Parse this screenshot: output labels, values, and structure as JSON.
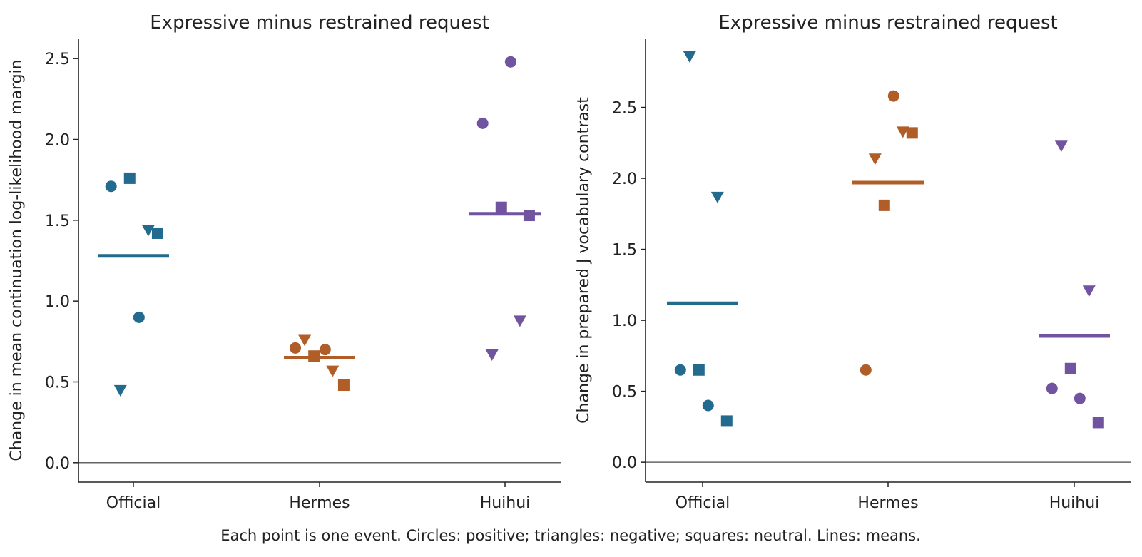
{
  "figure": {
    "caption": "Each point is one event. Circles: positive; triangles: negative; squares: neutral. Lines: means."
  },
  "colors": {
    "Official": "#236b8e",
    "Hermes": "#b05d27",
    "Huihui": "#7154a0",
    "zero_line": "#666666",
    "axis": "#222222"
  },
  "chart_data": [
    {
      "type": "scatter",
      "title": "Expressive minus restrained request",
      "xlabel": "",
      "ylabel": "Change in mean continuation log-likelihood margin",
      "categories": [
        "Official",
        "Hermes",
        "Huihui"
      ],
      "ylim": [
        -0.12,
        2.62
      ],
      "yticks": [
        "0.0",
        "0.5",
        "1.0",
        "1.5",
        "2.0",
        "2.5"
      ],
      "zero_line": true,
      "grid": false,
      "legend": "none",
      "series": [
        {
          "category": "Official",
          "mean": 1.28,
          "points": [
            {
              "jitter": -0.12,
              "y": 1.71,
              "marker": "circle"
            },
            {
              "jitter": 0.03,
              "y": 0.9,
              "marker": "circle"
            },
            {
              "jitter": -0.07,
              "y": 0.45,
              "marker": "triangle"
            },
            {
              "jitter": 0.08,
              "y": 1.44,
              "marker": "triangle"
            },
            {
              "jitter": -0.02,
              "y": 1.76,
              "marker": "square"
            },
            {
              "jitter": 0.13,
              "y": 1.42,
              "marker": "square"
            }
          ]
        },
        {
          "category": "Hermes",
          "mean": 0.65,
          "points": [
            {
              "jitter": -0.13,
              "y": 0.71,
              "marker": "circle"
            },
            {
              "jitter": 0.03,
              "y": 0.7,
              "marker": "circle"
            },
            {
              "jitter": -0.08,
              "y": 0.76,
              "marker": "triangle"
            },
            {
              "jitter": 0.07,
              "y": 0.57,
              "marker": "triangle"
            },
            {
              "jitter": -0.03,
              "y": 0.66,
              "marker": "square"
            },
            {
              "jitter": 0.13,
              "y": 0.48,
              "marker": "square"
            }
          ]
        },
        {
          "category": "Huihui",
          "mean": 1.54,
          "points": [
            {
              "jitter": -0.12,
              "y": 2.1,
              "marker": "circle"
            },
            {
              "jitter": 0.03,
              "y": 2.48,
              "marker": "circle"
            },
            {
              "jitter": -0.07,
              "y": 0.67,
              "marker": "triangle"
            },
            {
              "jitter": 0.08,
              "y": 0.88,
              "marker": "triangle"
            },
            {
              "jitter": -0.02,
              "y": 1.58,
              "marker": "square"
            },
            {
              "jitter": 0.13,
              "y": 1.53,
              "marker": "square"
            }
          ]
        }
      ]
    },
    {
      "type": "scatter",
      "title": "Expressive minus restrained request",
      "xlabel": "",
      "ylabel": "Change in prepared J vocabulary contrast",
      "categories": [
        "Official",
        "Hermes",
        "Huihui"
      ],
      "ylim": [
        -0.14,
        2.98
      ],
      "yticks": [
        "0.0",
        "0.5",
        "1.0",
        "1.5",
        "2.0",
        "2.5"
      ],
      "zero_line": true,
      "grid": false,
      "legend": "none",
      "series": [
        {
          "category": "Official",
          "mean": 1.12,
          "points": [
            {
              "jitter": -0.12,
              "y": 0.65,
              "marker": "circle"
            },
            {
              "jitter": 0.03,
              "y": 0.4,
              "marker": "circle"
            },
            {
              "jitter": -0.07,
              "y": 2.86,
              "marker": "triangle"
            },
            {
              "jitter": 0.08,
              "y": 1.87,
              "marker": "triangle"
            },
            {
              "jitter": -0.02,
              "y": 0.65,
              "marker": "square"
            },
            {
              "jitter": 0.13,
              "y": 0.29,
              "marker": "square"
            }
          ]
        },
        {
          "category": "Hermes",
          "mean": 1.97,
          "points": [
            {
              "jitter": -0.12,
              "y": 0.65,
              "marker": "circle"
            },
            {
              "jitter": 0.03,
              "y": 2.58,
              "marker": "circle"
            },
            {
              "jitter": -0.07,
              "y": 2.14,
              "marker": "triangle"
            },
            {
              "jitter": 0.08,
              "y": 2.33,
              "marker": "triangle"
            },
            {
              "jitter": -0.02,
              "y": 1.81,
              "marker": "square"
            },
            {
              "jitter": 0.13,
              "y": 2.32,
              "marker": "square"
            }
          ]
        },
        {
          "category": "Huihui",
          "mean": 0.89,
          "points": [
            {
              "jitter": -0.12,
              "y": 0.52,
              "marker": "circle"
            },
            {
              "jitter": 0.03,
              "y": 0.45,
              "marker": "circle"
            },
            {
              "jitter": -0.07,
              "y": 2.23,
              "marker": "triangle"
            },
            {
              "jitter": 0.08,
              "y": 1.21,
              "marker": "triangle"
            },
            {
              "jitter": -0.02,
              "y": 0.66,
              "marker": "square"
            },
            {
              "jitter": 0.13,
              "y": 0.28,
              "marker": "square"
            }
          ]
        }
      ]
    }
  ]
}
